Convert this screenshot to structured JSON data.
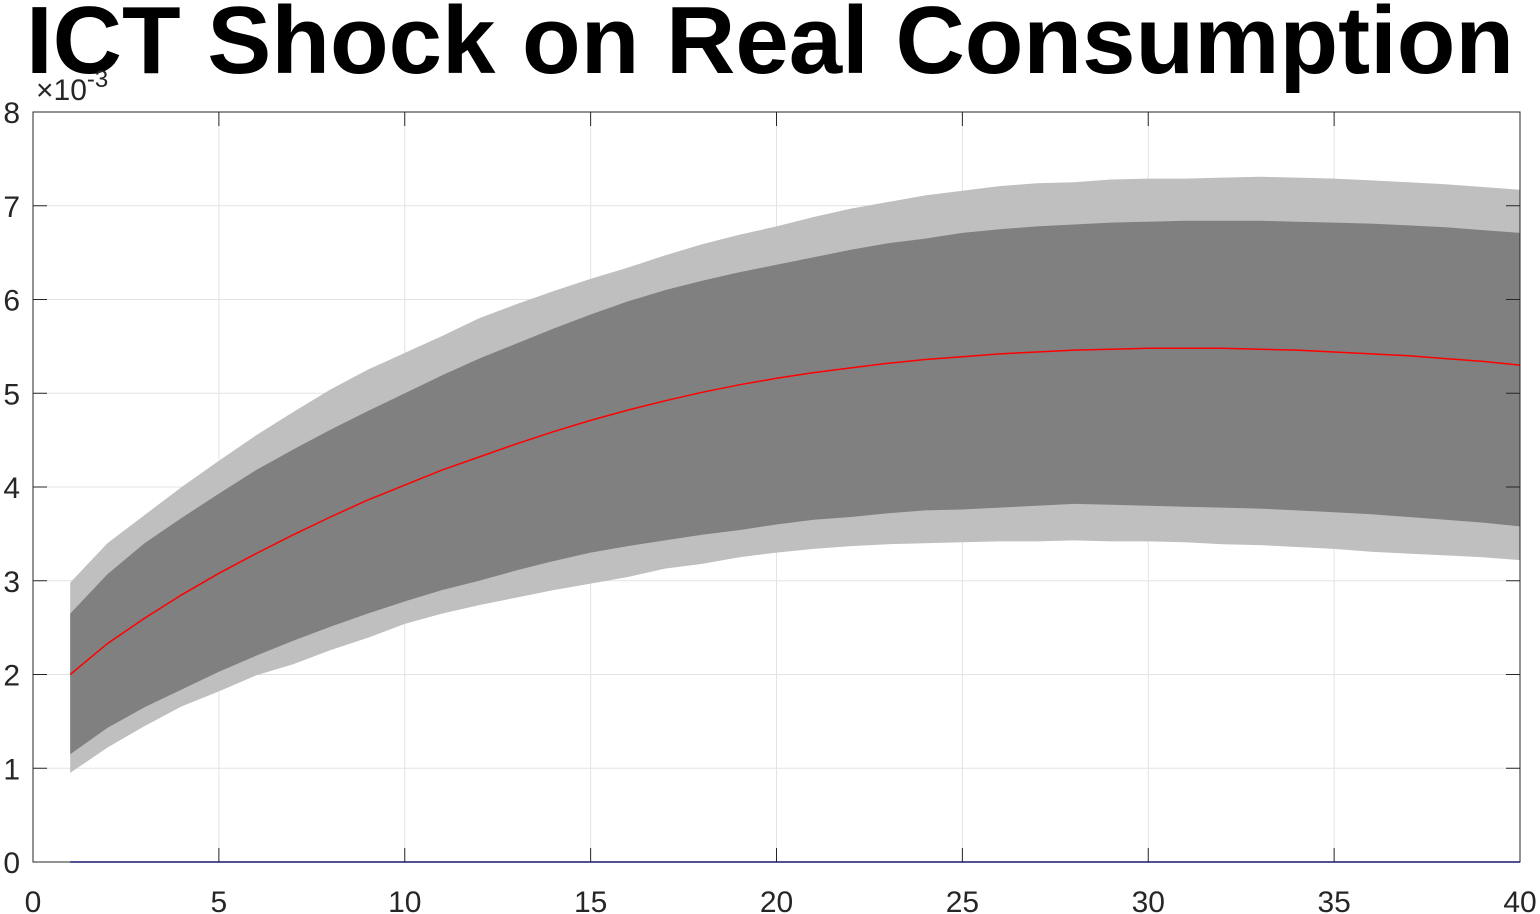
{
  "chart_data": {
    "type": "area",
    "title": "ICT Shock on Real Consumption",
    "xlabel": "",
    "ylabel": "",
    "xlim": [
      0,
      40
    ],
    "ylim": [
      0,
      0.008
    ],
    "y_exponent_label": {
      "base": "×10",
      "exp": "-3"
    },
    "x_ticks": [
      "0",
      "5",
      "10",
      "15",
      "20",
      "25",
      "30",
      "35",
      "40"
    ],
    "y_ticks": [
      "0",
      "1",
      "2",
      "3",
      "4",
      "5",
      "6",
      "7",
      "8"
    ],
    "grid": true,
    "x": [
      1,
      2,
      3,
      4,
      5,
      6,
      7,
      8,
      9,
      10,
      11,
      12,
      13,
      14,
      15,
      16,
      17,
      18,
      19,
      20,
      21,
      22,
      23,
      24,
      25,
      26,
      27,
      28,
      29,
      30,
      31,
      32,
      33,
      34,
      35,
      36,
      37,
      38,
      39,
      40
    ],
    "series": [
      {
        "role": "outer-band-upper",
        "color": "#bfbfbf",
        "values": [
          0.00298,
          0.0034,
          0.0037,
          0.004,
          0.00428,
          0.00455,
          0.0048,
          0.00504,
          0.00525,
          0.00543,
          0.00561,
          0.0058,
          0.00595,
          0.00609,
          0.00622,
          0.00634,
          0.00647,
          0.00659,
          0.00669,
          0.00678,
          0.00688,
          0.00697,
          0.00704,
          0.00711,
          0.00716,
          0.00721,
          0.00724,
          0.00725,
          0.00728,
          0.00729,
          0.00729,
          0.0073,
          0.00731,
          0.0073,
          0.00729,
          0.00727,
          0.00725,
          0.00723,
          0.0072,
          0.00717
        ]
      },
      {
        "role": "inner-band-upper",
        "color": "#808080",
        "values": [
          0.00265,
          0.00307,
          0.0034,
          0.00367,
          0.00393,
          0.00418,
          0.0044,
          0.00461,
          0.00481,
          0.005,
          0.00519,
          0.00537,
          0.00553,
          0.00569,
          0.00584,
          0.00598,
          0.0061,
          0.0062,
          0.00629,
          0.00637,
          0.00645,
          0.00653,
          0.0066,
          0.00665,
          0.00671,
          0.00675,
          0.00678,
          0.0068,
          0.00682,
          0.00683,
          0.00684,
          0.00684,
          0.00684,
          0.00683,
          0.00682,
          0.00681,
          0.00679,
          0.00677,
          0.00674,
          0.00671
        ]
      },
      {
        "role": "median",
        "color": "#ff0000",
        "values": [
          0.002,
          0.00233,
          0.0026,
          0.00285,
          0.00308,
          0.00329,
          0.00349,
          0.00368,
          0.00386,
          0.00402,
          0.00418,
          0.00432,
          0.00446,
          0.00459,
          0.00471,
          0.00482,
          0.00492,
          0.00501,
          0.00509,
          0.00516,
          0.00522,
          0.00527,
          0.00532,
          0.00536,
          0.00539,
          0.00542,
          0.00544,
          0.00546,
          0.00547,
          0.00548,
          0.00548,
          0.00548,
          0.00547,
          0.00546,
          0.00544,
          0.00542,
          0.0054,
          0.00537,
          0.00534,
          0.0053
        ]
      },
      {
        "role": "inner-band-lower",
        "color": "#808080",
        "values": [
          0.00115,
          0.00143,
          0.00165,
          0.00184,
          0.00203,
          0.0022,
          0.00236,
          0.00251,
          0.00265,
          0.00278,
          0.0029,
          0.003,
          0.00311,
          0.00321,
          0.0033,
          0.00337,
          0.00343,
          0.00349,
          0.00354,
          0.0036,
          0.00365,
          0.00368,
          0.00372,
          0.00375,
          0.00376,
          0.00378,
          0.0038,
          0.00382,
          0.00381,
          0.0038,
          0.00379,
          0.00378,
          0.00377,
          0.00375,
          0.00373,
          0.00371,
          0.00368,
          0.00365,
          0.00362,
          0.00358
        ]
      },
      {
        "role": "outer-band-lower",
        "color": "#bfbfbf",
        "values": [
          0.00095,
          0.00122,
          0.00145,
          0.00166,
          0.00182,
          0.00199,
          0.00211,
          0.00226,
          0.00239,
          0.00254,
          0.00265,
          0.00274,
          0.00282,
          0.0029,
          0.00297,
          0.00304,
          0.00313,
          0.00318,
          0.00325,
          0.0033,
          0.00334,
          0.00337,
          0.00339,
          0.0034,
          0.00341,
          0.00342,
          0.00342,
          0.00343,
          0.00342,
          0.00342,
          0.00341,
          0.00339,
          0.00338,
          0.00336,
          0.00334,
          0.00331,
          0.00329,
          0.00327,
          0.00325,
          0.00322
        ]
      },
      {
        "role": "zero-line",
        "color": "#0000ff",
        "values": [
          0,
          0,
          0,
          0,
          0,
          0,
          0,
          0,
          0,
          0,
          0,
          0,
          0,
          0,
          0,
          0,
          0,
          0,
          0,
          0,
          0,
          0,
          0,
          0,
          0,
          0,
          0,
          0,
          0,
          0,
          0,
          0,
          0,
          0,
          0,
          0,
          0,
          0,
          0,
          0
        ]
      }
    ]
  }
}
